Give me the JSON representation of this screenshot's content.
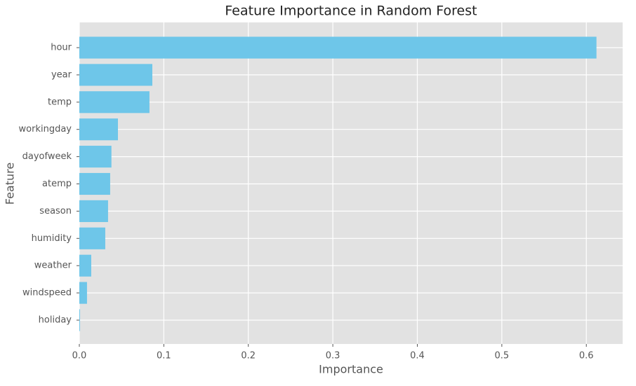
{
  "chart_data": {
    "type": "barh",
    "title": "Feature Importance in Random Forest",
    "x_label": "Importance",
    "y_label": "Feature",
    "categories": [
      "hour",
      "year",
      "temp",
      "workingday",
      "dayofweek",
      "atemp",
      "season",
      "humidity",
      "weather",
      "windspeed",
      "holiday"
    ],
    "values": [
      0.612,
      0.0864,
      0.083,
      0.0457,
      0.038,
      0.0365,
      0.034,
      0.0307,
      0.0141,
      0.0091,
      0.0008
    ],
    "color": "#6ec6e9",
    "xlim": [
      0,
      0.643
    ],
    "xticks": [
      {
        "value": 0,
        "label": "0.0"
      },
      0.1,
      0.2,
      0.3,
      0.4,
      0.5,
      0.6
    ],
    "grid": true
  }
}
